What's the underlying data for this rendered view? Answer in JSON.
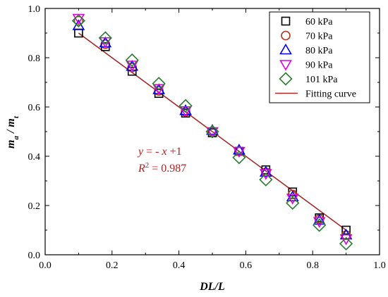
{
  "chart_data": {
    "type": "scatter",
    "xlabel": "DL/L",
    "ylabel": "ma / mt",
    "ylabel_parts": {
      "m1": "m",
      "sub1": "a",
      "slash": " / ",
      "m2": "m",
      "sub2": "t"
    },
    "xlim": [
      0.0,
      1.0
    ],
    "ylim": [
      0.0,
      1.0
    ],
    "xticks": [
      "0.0",
      "0.2",
      "0.4",
      "0.6",
      "0.8",
      "1.0"
    ],
    "yticks": [
      "0.0",
      "0.2",
      "0.4",
      "0.6",
      "0.8",
      "1.0"
    ],
    "grid": false,
    "legend_position": "top-right",
    "x": [
      0.1,
      0.18,
      0.26,
      0.34,
      0.42,
      0.5,
      0.58,
      0.66,
      0.74,
      0.82,
      0.9
    ],
    "series": [
      {
        "name": "60 kPa",
        "marker": "square",
        "color": "#000000",
        "values": [
          0.9,
          0.845,
          0.745,
          0.655,
          0.575,
          0.495,
          0.42,
          0.345,
          0.255,
          0.15,
          0.1
        ]
      },
      {
        "name": "70 kPa",
        "marker": "circle",
        "color": "#b5311b",
        "values": [
          0.95,
          0.855,
          0.76,
          0.665,
          0.58,
          0.5,
          0.42,
          0.335,
          0.245,
          0.145,
          0.08
        ]
      },
      {
        "name": "80 kPa",
        "marker": "triangle-up",
        "color": "#0000ee",
        "values": [
          0.93,
          0.86,
          0.765,
          0.67,
          0.585,
          0.505,
          0.425,
          0.335,
          0.235,
          0.14,
          0.08
        ]
      },
      {
        "name": "90 kPa",
        "marker": "triangle-down",
        "color": "#e000e0",
        "values": [
          0.96,
          0.865,
          0.77,
          0.675,
          0.585,
          0.5,
          0.42,
          0.33,
          0.23,
          0.135,
          0.065
        ]
      },
      {
        "name": "101 kPa",
        "marker": "diamond",
        "color": "#2e7d32",
        "values": [
          0.95,
          0.88,
          0.79,
          0.695,
          0.605,
          0.5,
          0.395,
          0.305,
          0.21,
          0.12,
          0.045
        ]
      }
    ],
    "fit": {
      "name": "Fitting curve",
      "color": "#a52a2a",
      "x": [
        0.1,
        0.9
      ],
      "y": [
        0.9,
        0.1
      ]
    },
    "annotation": {
      "line1": "y = - x +1",
      "line1_parts": {
        "y": "y",
        "mid": " = - ",
        "x": "x",
        "end": " +1"
      },
      "line2": "R2 = 0.987",
      "line2_parts": {
        "R": "R",
        "sup": "2",
        "end": " = 0.987"
      }
    }
  }
}
